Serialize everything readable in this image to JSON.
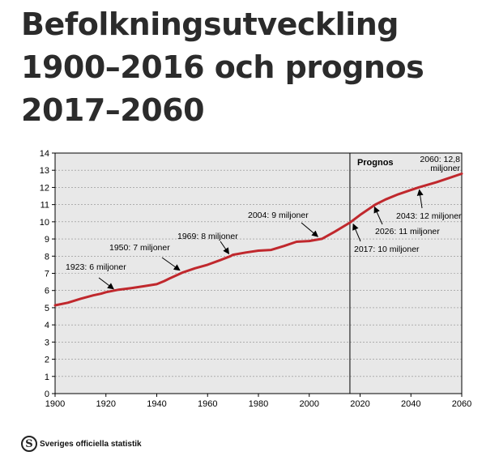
{
  "title_lines": [
    "Befolkningsutveckling",
    "1900–2016 och prognos",
    "2017–2060"
  ],
  "footer": {
    "org": "Sveriges officiella statistik",
    "logo_icon": "scb-logo-icon"
  },
  "colors": {
    "line": "#c0282d",
    "plot_bg": "#e8e8e8",
    "grid": "#8c8c8c",
    "axis": "#000000"
  },
  "chart_data": {
    "type": "line",
    "xlim": [
      1900,
      2060
    ],
    "ylim": [
      0,
      14
    ],
    "x_ticks": [
      1900,
      1920,
      1940,
      1960,
      1980,
      2000,
      2020,
      2040,
      2060
    ],
    "y_ticks": [
      0,
      1,
      2,
      3,
      4,
      5,
      6,
      7,
      8,
      9,
      10,
      11,
      12,
      13,
      14
    ],
    "grid": true,
    "divider_year": 2016,
    "region_label": "Prognos",
    "series": [
      {
        "x": [
          1900,
          1905,
          1910,
          1915,
          1918,
          1920,
          1925,
          1930,
          1935,
          1940,
          1943,
          1945,
          1948,
          1950,
          1955,
          1960,
          1965,
          1969,
          1970,
          1975,
          1980,
          1985,
          1990,
          1995,
          2000,
          2005,
          2010,
          2016,
          2020,
          2026,
          2030,
          2035,
          2040,
          2043,
          2050,
          2055,
          2060
        ],
        "y": [
          5.14,
          5.29,
          5.52,
          5.72,
          5.81,
          5.9,
          6.05,
          6.14,
          6.25,
          6.37,
          6.55,
          6.7,
          6.9,
          7.04,
          7.29,
          7.5,
          7.77,
          8.0,
          8.08,
          8.21,
          8.32,
          8.36,
          8.59,
          8.84,
          8.88,
          9.01,
          9.42,
          9.95,
          10.4,
          11.0,
          11.3,
          11.6,
          11.85,
          12.0,
          12.3,
          12.55,
          12.8
        ]
      }
    ],
    "annotations": [
      {
        "text": "1923: 6 miljoner",
        "year": 1923,
        "value": 6.0
      },
      {
        "text": "1950: 7 miljoner",
        "year": 1950,
        "value": 7.04
      },
      {
        "text": "1969: 8 miljoner",
        "year": 1969,
        "value": 8.0
      },
      {
        "text": "2004: 9 miljoner",
        "year": 2004,
        "value": 9.0
      },
      {
        "text": "2017: 10 miljoner",
        "year": 2017,
        "value": 10.0
      },
      {
        "text": "2026: 11 miljoner",
        "year": 2026,
        "value": 11.0
      },
      {
        "text": "2043: 12 miljoner",
        "year": 2043,
        "value": 12.0
      },
      {
        "text": "2060: 12,8",
        "text2": "miljoner",
        "year": 2060,
        "value": 12.8
      }
    ]
  }
}
